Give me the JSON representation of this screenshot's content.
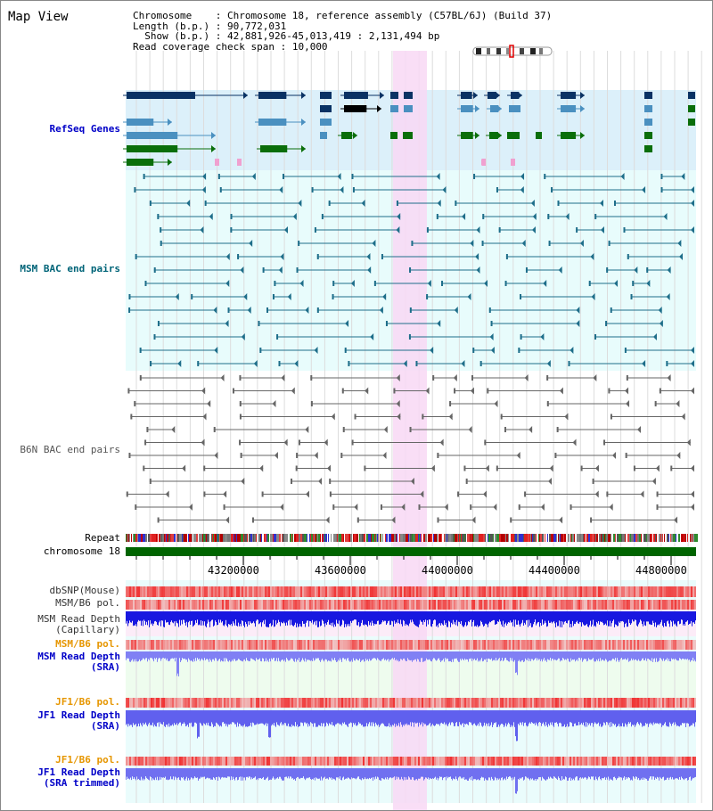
{
  "header": {
    "title": "Map View",
    "chromosome_key": "Chromosome    ",
    "chromosome_val": ": Chromosome 18, reference assembly (C57BL/6J) (Build 37)",
    "length_key": "Length (b.p.) ",
    "length_val": ": 90,772,031",
    "show_key": "  Show (b.p.) ",
    "show_val": ": 42,881,926-45,013,419 : 2,131,494 bp",
    "coverage_key": "Read coverage check span ",
    "coverage_val": ": 10,000"
  },
  "tracks": {
    "refseq": "RefSeq Genes",
    "msm_bac": "MSM BAC end pairs",
    "b6n_bac": "B6N BAC end pairs",
    "repeat": "Repeat",
    "chromosome": "chromosome 18",
    "dbsnp": "dbSNP(Mouse)",
    "msm_b6_pol": "MSM/B6 pol.",
    "msm_read_depth_cap_1": "MSM Read Depth",
    "msm_read_depth_cap_2": "(Capillary)",
    "msm_b6_pol_sra": "MSM/B6 pol.",
    "msm_read_depth_sra_1": "MSM Read Depth",
    "msm_read_depth_sra_2": "(SRA)",
    "jf1_b6_pol": "JF1/B6 pol.",
    "jf1_read_depth_1": "JF1 Read Depth",
    "jf1_read_depth_2": "(SRA)",
    "jf1_b6_pol_2": "JF1/B6 pol.",
    "jf1_read_depth_trim_1": "JF1 Read Depth",
    "jf1_read_depth_trim_2": "(SRA trimmed)"
  },
  "axis": {
    "ticks": [
      "43200000",
      "43600000",
      "44000000",
      "44400000",
      "44800000"
    ]
  },
  "colors": {
    "refseq_bg": "#dcf0fa",
    "bac_bg": "#e8fcfc",
    "highlight": "#f8d8f4",
    "navy": "#0a3264",
    "steel": "#4a90c0",
    "green": "#0a6e0a",
    "msm_label": "#006478",
    "refseq_label": "#0000c8",
    "orange_label": "#e69600",
    "grey_label": "#555555"
  }
}
